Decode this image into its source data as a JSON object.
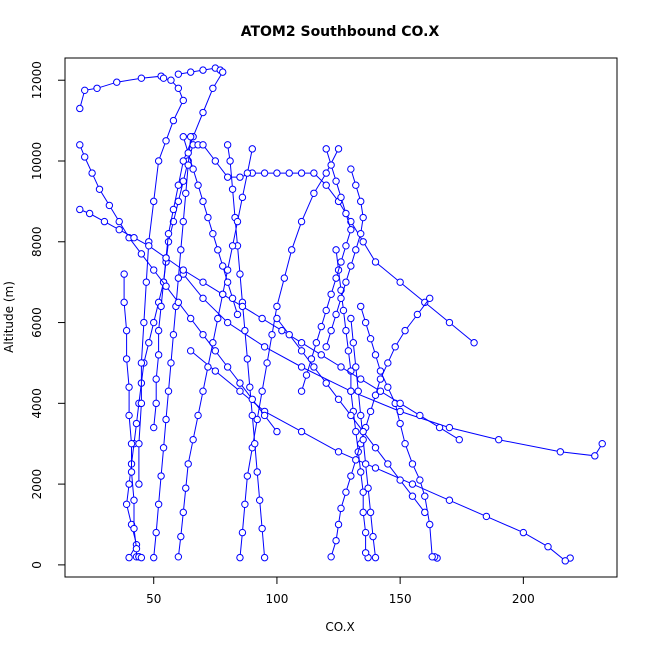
{
  "chart_data": {
    "type": "line",
    "title": "ATOM2 Southbound CO.X",
    "xlabel": "CO.X",
    "ylabel": "Altitude (m)",
    "xlim": [
      14,
      238
    ],
    "ylim": [
      -300,
      12550
    ],
    "xticks": [
      50,
      100,
      150,
      200
    ],
    "yticks": [
      0,
      2000,
      4000,
      6000,
      8000,
      10000,
      12000
    ],
    "grid": false,
    "legend": "none",
    "color": "#0000ff",
    "marker": "open-circle",
    "series": [
      {
        "x": [
          40,
          43,
          41,
          39,
          40,
          41,
          42,
          43,
          44,
          45,
          46,
          48,
          50,
          52,
          54,
          55,
          56,
          58,
          60,
          62,
          64,
          66,
          68,
          70,
          75,
          80,
          85,
          90,
          95,
          100,
          105,
          110,
          115,
          120,
          125,
          130,
          135,
          140,
          150,
          160,
          170,
          180
        ],
        "y": [
          180,
          500,
          1000,
          1500,
          2000,
          2500,
          3000,
          3500,
          4000,
          4500,
          5000,
          5500,
          6000,
          6500,
          7000,
          7500,
          8000,
          8500,
          9000,
          9500,
          10000,
          10400,
          10400,
          10400,
          10000,
          9600,
          9600,
          9700,
          9700,
          9700,
          9700,
          9700,
          9700,
          9400,
          9000,
          8500,
          8000,
          7500,
          7000,
          6500,
          6000,
          5500
        ]
      },
      {
        "x": [
          20,
          22,
          27,
          35,
          45,
          53,
          54,
          57,
          60,
          62,
          58,
          55,
          52,
          50,
          48,
          47,
          46,
          45,
          45,
          44,
          44
        ],
        "y": [
          11300,
          11750,
          11800,
          11950,
          12050,
          12100,
          12050,
          12000,
          11800,
          11500,
          11000,
          10500,
          10000,
          9000,
          8000,
          7000,
          6000,
          5000,
          4000,
          3000,
          2000
        ]
      },
      {
        "x": [
          60,
          65,
          70,
          75,
          77,
          78,
          74,
          70,
          66,
          62,
          60,
          58,
          56,
          55,
          54,
          53,
          52,
          52,
          51,
          51,
          50
        ],
        "y": [
          12150,
          12200,
          12250,
          12300,
          12250,
          12200,
          11800,
          11200,
          10600,
          10000,
          9400,
          8800,
          8200,
          7600,
          7000,
          6400,
          5800,
          5200,
          4600,
          4000,
          3400
        ]
      },
      {
        "x": [
          232,
          229,
          215,
          190,
          170,
          150,
          130,
          110,
          95,
          80,
          70,
          62
        ],
        "y": [
          3000,
          2700,
          2800,
          3100,
          3400,
          3800,
          4300,
          4900,
          5400,
          6000,
          6600,
          7200
        ]
      },
      {
        "x": [
          219,
          217,
          210,
          200,
          185,
          170,
          155,
          140,
          125,
          110,
          95,
          85,
          75,
          65
        ],
        "y": [
          170,
          100,
          450,
          800,
          1200,
          1600,
          2000,
          2400,
          2800,
          3300,
          3800,
          4300,
          4800,
          5300
        ]
      },
      {
        "x": [
          165,
          164,
          163,
          162,
          160,
          158,
          155,
          152,
          150,
          148,
          145,
          142,
          140,
          138,
          136,
          134
        ],
        "y": [
          170,
          200,
          200,
          1000,
          1700,
          2100,
          2500,
          3000,
          3500,
          4000,
          4400,
          4800,
          5200,
          5600,
          6000,
          6400
        ]
      },
      {
        "x": [
          137,
          136,
          136,
          135,
          135,
          134,
          133,
          132,
          131,
          130,
          130,
          129,
          128,
          127,
          126,
          125,
          124
        ],
        "y": [
          180,
          300,
          800,
          1300,
          1800,
          2300,
          2800,
          3300,
          3800,
          4300,
          4800,
          5300,
          5800,
          6300,
          6800,
          7300,
          7800
        ]
      },
      {
        "x": [
          122,
          124,
          125,
          126,
          128,
          130,
          132,
          134,
          136,
          138,
          140,
          142,
          145,
          148,
          152,
          157,
          162
        ],
        "y": [
          200,
          600,
          1000,
          1400,
          1800,
          2200,
          2600,
          3000,
          3400,
          3800,
          4200,
          4600,
          5000,
          5400,
          5800,
          6200,
          6600
        ]
      },
      {
        "x": [
          85,
          86,
          87,
          88,
          90,
          92,
          94,
          96,
          98,
          100,
          103,
          106,
          110,
          115,
          120,
          125
        ],
        "y": [
          180,
          800,
          1500,
          2200,
          2900,
          3600,
          4300,
          5000,
          5700,
          6400,
          7100,
          7800,
          8500,
          9200,
          9700,
          10300
        ]
      },
      {
        "x": [
          95,
          94,
          93,
          92,
          91,
          90,
          89,
          88,
          87,
          86,
          85,
          84,
          83,
          82,
          81,
          80
        ],
        "y": [
          180,
          900,
          1600,
          2300,
          3000,
          3700,
          4400,
          5100,
          5800,
          6500,
          7200,
          7900,
          8600,
          9300,
          10000,
          10400
        ]
      },
      {
        "x": [
          60,
          61,
          62,
          63,
          64,
          66,
          68,
          70,
          72,
          74,
          76,
          78,
          80,
          82,
          84,
          86,
          88,
          90
        ],
        "y": [
          200,
          700,
          1300,
          1900,
          2500,
          3100,
          3700,
          4300,
          4900,
          5500,
          6100,
          6700,
          7300,
          7900,
          8500,
          9100,
          9700,
          10300
        ]
      },
      {
        "x": [
          50,
          51,
          52,
          53,
          54,
          55,
          56,
          57,
          58,
          59,
          60,
          61,
          62,
          63,
          64,
          65
        ],
        "y": [
          180,
          800,
          1500,
          2200,
          2900,
          3600,
          4300,
          5000,
          5700,
          6400,
          7100,
          7800,
          8500,
          9200,
          9900,
          10600
        ]
      },
      {
        "x": [
          20,
          22,
          25,
          28,
          32,
          36,
          40,
          45,
          50,
          55,
          60,
          65,
          70,
          75,
          80,
          85,
          90,
          95,
          100
        ],
        "y": [
          10400,
          10100,
          9700,
          9300,
          8900,
          8500,
          8100,
          7700,
          7300,
          6900,
          6500,
          6100,
          5700,
          5300,
          4900,
          4500,
          4100,
          3700,
          3300
        ]
      },
      {
        "x": [
          20,
          24,
          30,
          36,
          42,
          48,
          55,
          62,
          70,
          78,
          86,
          94,
          102,
          110,
          118,
          126,
          134,
          142,
          150,
          158,
          166,
          174
        ],
        "y": [
          8800,
          8700,
          8500,
          8300,
          8100,
          7900,
          7600,
          7300,
          7000,
          6700,
          6400,
          6100,
          5800,
          5500,
          5200,
          4900,
          4600,
          4300,
          4000,
          3700,
          3400,
          3100
        ]
      },
      {
        "x": [
          38,
          38,
          39,
          39,
          40,
          40,
          41,
          41,
          42,
          42,
          43,
          43,
          44,
          44,
          45
        ],
        "y": [
          7200,
          6500,
          5800,
          5100,
          4400,
          3700,
          3000,
          2300,
          1600,
          900,
          400,
          200,
          200,
          200,
          180
        ]
      },
      {
        "x": [
          140,
          139,
          138,
          137,
          136,
          135,
          134,
          133,
          132,
          131,
          130
        ],
        "y": [
          180,
          700,
          1300,
          1900,
          2500,
          3100,
          3700,
          4300,
          4900,
          5500,
          6100
        ]
      },
      {
        "x": [
          160,
          155,
          150,
          145,
          140,
          135,
          130,
          125,
          120,
          115,
          110,
          105,
          100
        ],
        "y": [
          1300,
          1700,
          2100,
          2500,
          2900,
          3300,
          3700,
          4100,
          4500,
          4900,
          5300,
          5700,
          6100
        ]
      },
      {
        "x": [
          120,
          122,
          124,
          126,
          128,
          130,
          128,
          126,
          124,
          122,
          120,
          118,
          116,
          114,
          112,
          110
        ],
        "y": [
          10300,
          9900,
          9500,
          9100,
          8700,
          8300,
          7900,
          7500,
          7100,
          6700,
          6300,
          5900,
          5500,
          5100,
          4700,
          4300
        ]
      },
      {
        "x": [
          130,
          132,
          134,
          135,
          134,
          132,
          130,
          128,
          126,
          124,
          122,
          120
        ],
        "y": [
          9800,
          9400,
          9000,
          8600,
          8200,
          7800,
          7400,
          7000,
          6600,
          6200,
          5800,
          5400
        ]
      },
      {
        "x": [
          62,
          64,
          66,
          68,
          70,
          72,
          74,
          76,
          78,
          80,
          82,
          84
        ],
        "y": [
          10600,
          10200,
          9800,
          9400,
          9000,
          8600,
          8200,
          7800,
          7400,
          7000,
          6600,
          6200
        ]
      }
    ]
  }
}
